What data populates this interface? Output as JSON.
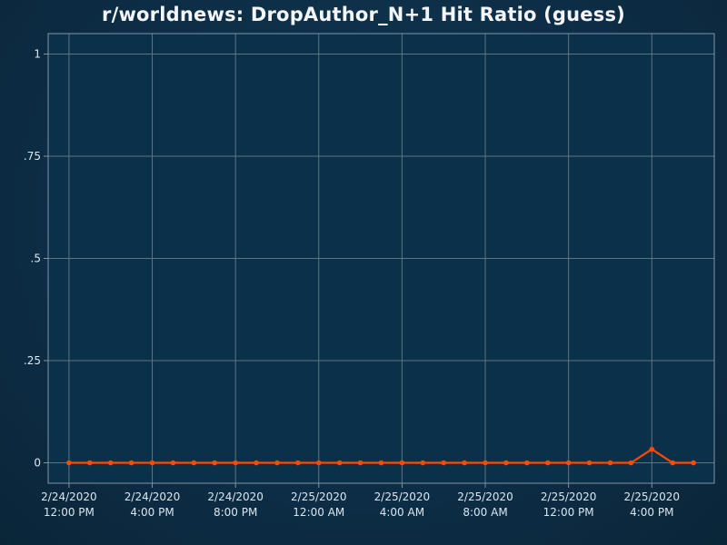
{
  "chart_data": {
    "type": "line",
    "title": "r/worldnews: DropAuthor_N+1 Hit Ratio (guess)",
    "xlabel": "",
    "ylabel": "",
    "ylim": [
      -0.05,
      1.05
    ],
    "y_ticks": [
      {
        "value": 0,
        "label": "0"
      },
      {
        "value": 0.25,
        "label": ".25"
      },
      {
        "value": 0.5,
        "label": ".5"
      },
      {
        "value": 0.75,
        "label": ".75"
      },
      {
        "value": 1,
        "label": "1"
      }
    ],
    "x_ticks": [
      {
        "x": "2020-02-24 12:00",
        "date": "2/24/2020",
        "time": "12:00 PM"
      },
      {
        "x": "2020-02-24 16:00",
        "date": "2/24/2020",
        "time": "4:00 PM"
      },
      {
        "x": "2020-02-24 20:00",
        "date": "2/24/2020",
        "time": "8:00 PM"
      },
      {
        "x": "2020-02-25 00:00",
        "date": "2/25/2020",
        "time": "12:00 AM"
      },
      {
        "x": "2020-02-25 04:00",
        "date": "2/25/2020",
        "time": "4:00 AM"
      },
      {
        "x": "2020-02-25 08:00",
        "date": "2/25/2020",
        "time": "8:00 AM"
      },
      {
        "x": "2020-02-25 12:00",
        "date": "2/25/2020",
        "time": "12:00 PM"
      },
      {
        "x": "2020-02-25 16:00",
        "date": "2/25/2020",
        "time": "4:00 PM"
      }
    ],
    "xlim": [
      "2020-02-24 11:00",
      "2020-02-25 19:00"
    ],
    "grid": true,
    "series": [
      {
        "color": "#ff4a00",
        "points": [
          {
            "x": "2020-02-24 12:00",
            "y": 0
          },
          {
            "x": "2020-02-24 13:00",
            "y": 0
          },
          {
            "x": "2020-02-24 14:00",
            "y": 0
          },
          {
            "x": "2020-02-24 15:00",
            "y": 0
          },
          {
            "x": "2020-02-24 16:00",
            "y": 0
          },
          {
            "x": "2020-02-24 17:00",
            "y": 0
          },
          {
            "x": "2020-02-24 18:00",
            "y": 0
          },
          {
            "x": "2020-02-24 19:00",
            "y": 0
          },
          {
            "x": "2020-02-24 20:00",
            "y": 0
          },
          {
            "x": "2020-02-24 21:00",
            "y": 0
          },
          {
            "x": "2020-02-24 22:00",
            "y": 0
          },
          {
            "x": "2020-02-24 23:00",
            "y": 0
          },
          {
            "x": "2020-02-25 00:00",
            "y": 0
          },
          {
            "x": "2020-02-25 01:00",
            "y": 0
          },
          {
            "x": "2020-02-25 02:00",
            "y": 0
          },
          {
            "x": "2020-02-25 03:00",
            "y": 0
          },
          {
            "x": "2020-02-25 04:00",
            "y": 0
          },
          {
            "x": "2020-02-25 05:00",
            "y": 0
          },
          {
            "x": "2020-02-25 06:00",
            "y": 0
          },
          {
            "x": "2020-02-25 07:00",
            "y": 0
          },
          {
            "x": "2020-02-25 08:00",
            "y": 0
          },
          {
            "x": "2020-02-25 09:00",
            "y": 0
          },
          {
            "x": "2020-02-25 10:00",
            "y": 0
          },
          {
            "x": "2020-02-25 11:00",
            "y": 0
          },
          {
            "x": "2020-02-25 12:00",
            "y": 0
          },
          {
            "x": "2020-02-25 13:00",
            "y": 0
          },
          {
            "x": "2020-02-25 14:00",
            "y": 0
          },
          {
            "x": "2020-02-25 15:00",
            "y": 0
          },
          {
            "x": "2020-02-25 16:00",
            "y": 0.033
          },
          {
            "x": "2020-02-25 17:00",
            "y": 0
          },
          {
            "x": "2020-02-25 18:00",
            "y": 0
          }
        ]
      }
    ],
    "colors": {
      "plot_background": "#0b3049",
      "grid": "#5f7384",
      "axis_frame": "#7f95a6",
      "line": "#ff4a00"
    }
  }
}
